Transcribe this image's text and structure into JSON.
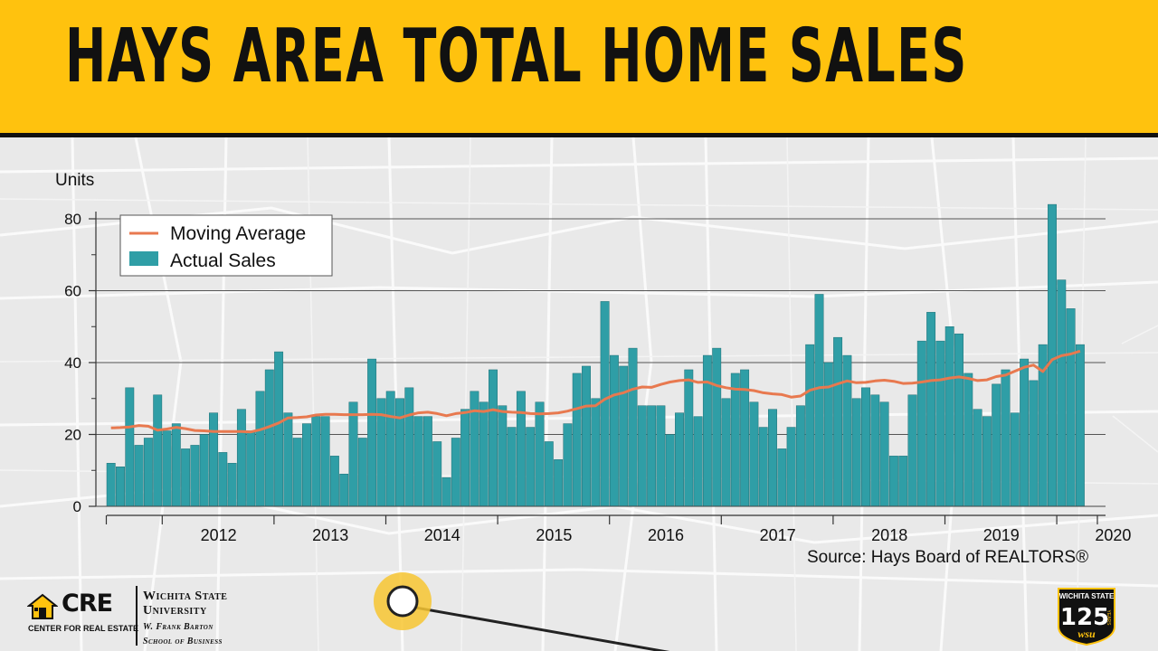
{
  "header": {
    "title": "HAYS AREA TOTAL HOME SALES",
    "background_color": "#ffc20e"
  },
  "chart_data": {
    "type": "bar",
    "ylabel": "Units",
    "ylim": [
      0,
      85
    ],
    "yticks": [
      0,
      20,
      40,
      60,
      80
    ],
    "grid": "horizontal",
    "legend_position": "top-left",
    "year_labels": [
      "2012",
      "2013",
      "2014",
      "2015",
      "2016",
      "2017",
      "2018",
      "2019",
      "2020"
    ],
    "start": "2011-07",
    "frequency": "monthly",
    "series": [
      {
        "name": "Actual Sales",
        "type": "bar",
        "color": "#2f9ea6",
        "values": [
          12,
          11,
          33,
          17,
          19,
          31,
          21,
          23,
          16,
          17,
          20,
          26,
          15,
          12,
          27,
          21,
          32,
          38,
          43,
          26,
          19,
          23,
          25,
          25,
          14,
          9,
          29,
          19,
          41,
          30,
          32,
          30,
          33,
          25,
          25,
          18,
          8,
          19,
          27,
          32,
          29,
          38,
          28,
          22,
          32,
          22,
          29,
          18,
          13,
          23,
          37,
          39,
          30,
          57,
          42,
          39,
          44,
          28,
          28,
          28,
          20,
          26,
          38,
          25,
          42,
          44,
          30,
          37,
          38,
          29,
          22,
          27,
          16,
          22,
          28,
          45,
          59,
          40,
          47,
          42,
          30,
          33,
          31,
          29,
          14,
          14,
          31,
          46,
          54,
          46,
          50,
          48,
          37,
          27,
          25,
          34,
          38,
          26,
          41,
          35,
          45,
          84,
          63,
          55,
          45
        ]
      },
      {
        "name": "Moving Average",
        "type": "line",
        "color": "#e8794f",
        "values": [
          21.8,
          21.9,
          22.1,
          22.5,
          22.3,
          21.2,
          21.5,
          22.0,
          21.6,
          21.1,
          21.0,
          20.8,
          20.8,
          20.8,
          20.8,
          20.7,
          21.3,
          22.2,
          23.2,
          24.6,
          24.7,
          24.9,
          25.4,
          25.6,
          25.6,
          25.5,
          25.5,
          25.5,
          25.6,
          25.5,
          25.0,
          24.6,
          25.4,
          26.0,
          26.2,
          25.8,
          25.2,
          25.8,
          26.1,
          26.6,
          26.4,
          26.9,
          26.4,
          26.2,
          26.1,
          25.8,
          25.7,
          25.8,
          26.0,
          26.5,
          27.2,
          27.9,
          28.0,
          29.8,
          31.0,
          31.6,
          32.6,
          33.2,
          33.1,
          33.9,
          34.6,
          35.0,
          35.2,
          34.5,
          34.6,
          33.6,
          33.0,
          32.6,
          32.5,
          32.2,
          31.6,
          31.3,
          31.1,
          30.4,
          30.7,
          32.3,
          33.0,
          33.2,
          34.1,
          34.9,
          34.4,
          34.5,
          34.9,
          35.1,
          34.8,
          34.2,
          34.3,
          34.6,
          35.0,
          35.2,
          35.7,
          36.0,
          35.6,
          35.0,
          35.2,
          36.1,
          36.5,
          37.6,
          38.7,
          39.3,
          37.5,
          40.8,
          41.9,
          42.4,
          43.2
        ]
      }
    ]
  },
  "source_text": "Source: Hays Board of REALTORS®",
  "logos": {
    "cre": {
      "mark": "CRE",
      "subtitle": "CENTER FOR REAL ESTATE",
      "icon": "house-icon"
    },
    "wsu": {
      "name_line1": "Wichita State",
      "name_line2": "University",
      "school_line1": "W. Frank Barton",
      "school_line2": "School of Business"
    },
    "badge": {
      "top": "WICHITA STATE",
      "number": "125",
      "bottom": "wsu",
      "side": "YEARS",
      "icon": "shield-badge-icon"
    }
  },
  "colors": {
    "accent": "#ffc20e",
    "map_bg": "#e9e9e9",
    "map_roads": "#fafafa",
    "ink": "#111111"
  }
}
